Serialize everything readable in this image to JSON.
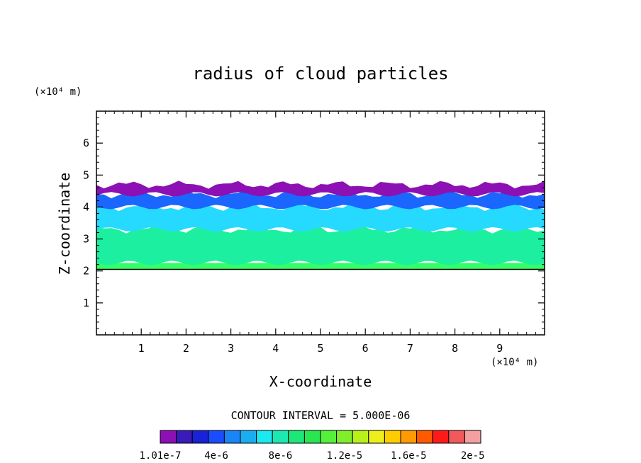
{
  "chart_data": {
    "type": "heatmap",
    "title": "radius of cloud particles",
    "xlabel": "X-coordinate",
    "ylabel": "Z-coordinate",
    "x_unit": "(×10⁴ m)",
    "y_unit": "(×10⁴ m)",
    "xlim": [
      0,
      10
    ],
    "ylim": [
      0,
      7
    ],
    "x_ticks": [
      "1",
      "2",
      "3",
      "4",
      "5",
      "6",
      "7",
      "8",
      "9"
    ],
    "y_ticks": [
      "1",
      "2",
      "3",
      "4",
      "5",
      "6"
    ],
    "contour_interval_text": "CONTOUR INTERVAL = 5.000E-06",
    "cloud_layer": {
      "base_z": 2.05,
      "top_z_range": [
        4.4,
        4.75
      ],
      "bands": [
        {
          "z": [
            2.05,
            2.25
          ],
          "level": "8e-6 to 1.2e-5",
          "color": "#33ff66"
        },
        {
          "z": [
            2.25,
            3.3
          ],
          "level": "6e-6 to 8e-6",
          "color": "#1cf0a0"
        },
        {
          "z": [
            3.3,
            4.0
          ],
          "level": "4e-6 to 6e-6",
          "color": "#26d9ff"
        },
        {
          "z": [
            4.0,
            4.4
          ],
          "level": "1e-6 to 3e-6",
          "color": "#1a66ff"
        },
        {
          "z": [
            4.4,
            4.7
          ],
          "level": "1.01e-7 to 1e-6",
          "color": "#8c10b4"
        }
      ]
    },
    "colorbar": {
      "colors": [
        "#8c10b4",
        "#3a1ab8",
        "#1a22d8",
        "#1a4dff",
        "#1a85f5",
        "#1aaef0",
        "#1ce8f0",
        "#1ce8b0",
        "#1ce87a",
        "#2ae650",
        "#55f03a",
        "#80ee2a",
        "#b8f01a",
        "#eeee1a",
        "#ffcc00",
        "#ff9a00",
        "#ff5a00",
        "#ff1a1a",
        "#f05a5a",
        "#f5a0a0"
      ],
      "labels": [
        "1.01e-7",
        "4e-6",
        "8e-6",
        "1.2e-5",
        "1.6e-5",
        "2e-5"
      ]
    }
  }
}
